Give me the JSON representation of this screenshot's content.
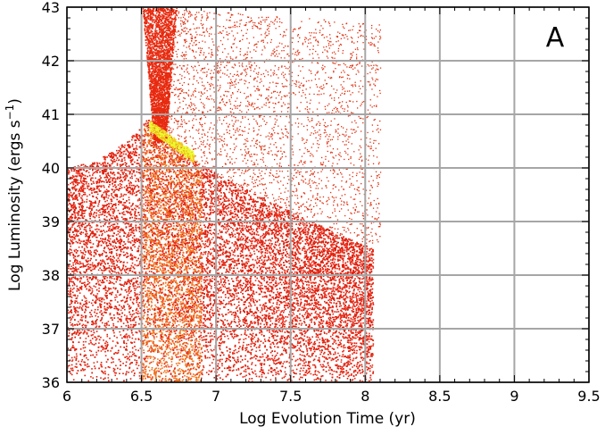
{
  "chart_data": {
    "type": "heatmap",
    "panel_label": "A",
    "xlabel": "Log Evolution Time (yr)",
    "ylabel_main": "Log Luminosity (ergs s",
    "ylabel_sup": "−1",
    "ylabel_close": ")",
    "xlim": [
      6,
      9.5
    ],
    "ylim": [
      36,
      43
    ],
    "x_ticks": [
      {
        "value": 6,
        "label": "6"
      },
      {
        "value": 6.5,
        "label": "6.5"
      },
      {
        "value": 7,
        "label": "7"
      },
      {
        "value": 7.5,
        "label": "7.5"
      },
      {
        "value": 8,
        "label": "8"
      },
      {
        "value": 8.5,
        "label": "8.5"
      },
      {
        "value": 9,
        "label": "9"
      },
      {
        "value": 9.5,
        "label": "9.5"
      }
    ],
    "y_ticks": [
      {
        "value": 36,
        "label": "36"
      },
      {
        "value": 37,
        "label": "37"
      },
      {
        "value": 38,
        "label": "38"
      },
      {
        "value": 39,
        "label": "39"
      },
      {
        "value": 40,
        "label": "40"
      },
      {
        "value": 41,
        "label": "41"
      },
      {
        "value": 42,
        "label": "42"
      },
      {
        "value": 43,
        "label": "43"
      }
    ],
    "grid": true,
    "density_regions": [
      {
        "name": "dense-bulk",
        "x": [
          6.0,
          8.05
        ],
        "y_min": 36.0,
        "upper_envelope": [
          [
            6.0,
            40.0
          ],
          [
            6.2,
            40.15
          ],
          [
            6.4,
            40.5
          ],
          [
            6.55,
            40.95
          ],
          [
            6.6,
            40.9
          ],
          [
            6.8,
            40.3
          ],
          [
            7.0,
            39.9
          ],
          [
            7.5,
            39.2
          ],
          [
            7.8,
            38.8
          ],
          [
            8.05,
            38.5
          ]
        ],
        "color": "#e8200f"
      },
      {
        "name": "sparse-upper",
        "x": [
          6.6,
          8.1
        ],
        "y_min": 38.5,
        "y_max": 43.0,
        "color": "#e03010"
      },
      {
        "name": "vertical-plume",
        "x": [
          6.55,
          6.75
        ],
        "y": [
          40.5,
          43.0
        ],
        "color": "#e82a10"
      },
      {
        "name": "peak-density",
        "x": [
          6.55,
          6.85
        ],
        "y": [
          40.2,
          40.8
        ],
        "color": "#e8ff30"
      },
      {
        "name": "orange-band",
        "x": [
          6.5,
          6.9
        ],
        "y": [
          36.0,
          40.8
        ],
        "color": "#f07a20"
      }
    ]
  }
}
